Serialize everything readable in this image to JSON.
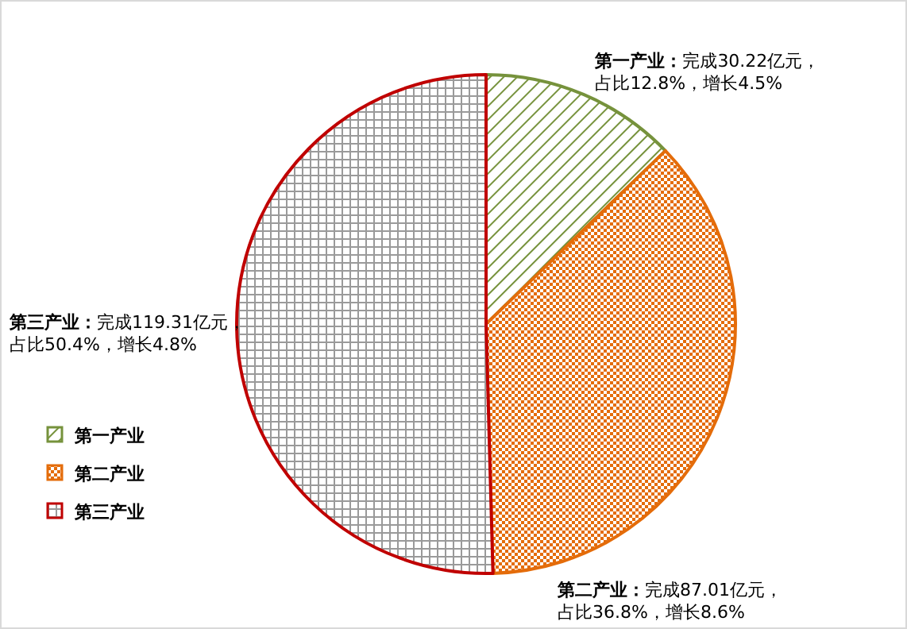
{
  "chart_data": {
    "type": "pie",
    "categories": [
      "第一产业",
      "第二产业",
      "第三产业"
    ],
    "values": [
      30.22,
      87.01,
      119.31
    ],
    "value_labels": [
      "第一产业：完成30.22亿元，占比12.8%，增长4.5%",
      "第二产业：完成87.01亿元，占比36.8%，增长8.6%",
      "第三产业：完成119.31亿元，占比50.4%，增长4.8%"
    ],
    "colors": [
      "#76923c",
      "#e46c0a",
      "#c00000"
    ],
    "legend": "left"
  }
}
